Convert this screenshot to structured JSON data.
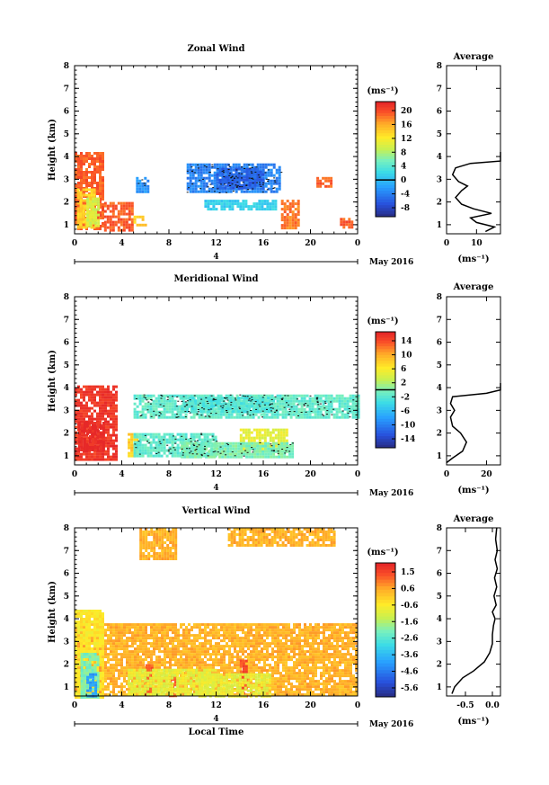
{
  "chart_data": [
    {
      "type": "heatmap",
      "title": "Zonal Wind",
      "xlabel": "",
      "ylabel": "Height (km)",
      "x_ticks": [
        "0",
        "4",
        "8",
        "12",
        "16",
        "20",
        "0"
      ],
      "y_ticks": [
        "1",
        "2",
        "3",
        "4",
        "5",
        "6",
        "7",
        "8"
      ],
      "xlim": [
        0,
        24
      ],
      "ylim": [
        0.6,
        8
      ],
      "date_label": "4",
      "month_label": "May 2016",
      "colorbar": {
        "unit": "(ms⁻¹)",
        "ticks": [
          "20",
          "16",
          "12",
          "8",
          "4",
          "0",
          "-4",
          "-8"
        ],
        "range": [
          -10,
          22
        ]
      },
      "regions": [
        {
          "x": [
            0,
            2.5
          ],
          "y": [
            0.8,
            4.2
          ],
          "value": 19
        },
        {
          "x": [
            0.2,
            1.6
          ],
          "y": [
            0.9,
            2.6
          ],
          "value": 14
        },
        {
          "x": [
            1.0,
            2.0
          ],
          "y": [
            1.0,
            2.2
          ],
          "value": 10
        },
        {
          "x": [
            2.5,
            5.0
          ],
          "y": [
            0.8,
            2.0
          ],
          "value": 19
        },
        {
          "x": [
            5.0,
            6.0
          ],
          "y": [
            1.0,
            1.4
          ],
          "value": 14
        },
        {
          "x": [
            5.2,
            6.3
          ],
          "y": [
            2.5,
            3.1
          ],
          "value": -2
        },
        {
          "x": [
            9.5,
            17.5
          ],
          "y": [
            2.4,
            3.7
          ],
          "value": -3
        },
        {
          "x": [
            12.0,
            16.0
          ],
          "y": [
            2.6,
            3.5
          ],
          "value": -5
        },
        {
          "x": [
            17.5,
            19.0
          ],
          "y": [
            0.9,
            2.1
          ],
          "value": 18
        },
        {
          "x": [
            20.5,
            21.8
          ],
          "y": [
            2.7,
            3.1
          ],
          "value": 19
        },
        {
          "x": [
            22.5,
            23.5
          ],
          "y": [
            0.9,
            1.3
          ],
          "value": 19
        },
        {
          "x": [
            11.0,
            17.0
          ],
          "y": [
            1.7,
            2.1
          ],
          "value": 2
        }
      ],
      "zero_contour": true
    },
    {
      "type": "line",
      "title": "Average",
      "xlabel": "(ms⁻¹)",
      "x_ticks": [
        "0",
        "10"
      ],
      "y_ticks": [
        "1",
        "2",
        "3",
        "4",
        "5",
        "6",
        "7",
        "8"
      ],
      "xlim": [
        0,
        18
      ],
      "ylim": [
        0.6,
        8
      ],
      "profile": [
        [
          13,
          0.7
        ],
        [
          16,
          0.9
        ],
        [
          10,
          1.1
        ],
        [
          8,
          1.3
        ],
        [
          15,
          1.5
        ],
        [
          9,
          1.7
        ],
        [
          5,
          1.9
        ],
        [
          3,
          2.2
        ],
        [
          5,
          2.5
        ],
        [
          7,
          2.7
        ],
        [
          4,
          2.9
        ],
        [
          2,
          3.2
        ],
        [
          3,
          3.5
        ],
        [
          8,
          3.7
        ],
        [
          18,
          3.8
        ],
        [
          18,
          4.2
        ]
      ]
    },
    {
      "type": "heatmap",
      "title": "Meridional Wind",
      "xlabel": "",
      "ylabel": "Height (km)",
      "x_ticks": [
        "0",
        "4",
        "8",
        "12",
        "16",
        "20",
        "0"
      ],
      "y_ticks": [
        "1",
        "2",
        "3",
        "4",
        "5",
        "6",
        "7",
        "8"
      ],
      "xlim": [
        0,
        24
      ],
      "ylim": [
        0.6,
        8
      ],
      "date_label": "4",
      "month_label": "May 2016",
      "colorbar": {
        "unit": "(ms⁻¹)",
        "ticks": [
          "14",
          "10",
          "6",
          "2",
          "-2",
          "-6",
          "-10",
          "-14"
        ],
        "range": [
          -16,
          16
        ]
      },
      "regions": [
        {
          "x": [
            0,
            3.5
          ],
          "y": [
            0.8,
            4.1
          ],
          "value": 15
        },
        {
          "x": [
            0.3,
            2.5
          ],
          "y": [
            1.2,
            2.5
          ],
          "value": 16
        },
        {
          "x": [
            4.5,
            5.2
          ],
          "y": [
            1.0,
            2.0
          ],
          "value": 8
        },
        {
          "x": [
            5.0,
            12.0
          ],
          "y": [
            1.0,
            2.0
          ],
          "value": -1
        },
        {
          "x": [
            5.0,
            24.0
          ],
          "y": [
            2.7,
            3.7
          ],
          "value": -1
        },
        {
          "x": [
            9.0,
            17.0
          ],
          "y": [
            2.9,
            3.6
          ],
          "value": -2
        },
        {
          "x": [
            14.0,
            18.0
          ],
          "y": [
            1.2,
            2.2
          ],
          "value": 5
        },
        {
          "x": [
            9.0,
            18.5
          ],
          "y": [
            1.0,
            1.6
          ],
          "value": 0
        }
      ],
      "zero_contour": true
    },
    {
      "type": "line",
      "title": "Average",
      "xlabel": "(ms⁻¹)",
      "x_ticks": [
        "0",
        "20"
      ],
      "y_ticks": [
        "1",
        "2",
        "3",
        "4",
        "5",
        "6",
        "7",
        "8"
      ],
      "xlim": [
        0,
        27
      ],
      "ylim": [
        0.6,
        8
      ],
      "profile": [
        [
          0,
          0.7
        ],
        [
          3,
          0.9
        ],
        [
          8,
          1.2
        ],
        [
          10,
          1.6
        ],
        [
          7,
          2.0
        ],
        [
          3,
          2.3
        ],
        [
          2,
          2.7
        ],
        [
          4,
          3.0
        ],
        [
          2,
          3.3
        ],
        [
          3,
          3.6
        ],
        [
          20,
          3.75
        ],
        [
          27,
          3.9
        ],
        [
          27,
          4.2
        ]
      ]
    },
    {
      "type": "heatmap",
      "title": "Vertical Wind",
      "xlabel": "Local Time",
      "ylabel": "Height (km)",
      "x_ticks": [
        "0",
        "4",
        "8",
        "12",
        "16",
        "20",
        "0"
      ],
      "y_ticks": [
        "1",
        "2",
        "3",
        "4",
        "5",
        "6",
        "7",
        "8"
      ],
      "xlim": [
        0,
        24
      ],
      "ylim": [
        0.6,
        8
      ],
      "date_label": "4",
      "month_label": "May 2016",
      "colorbar": {
        "unit": "(ms⁻¹)",
        "ticks": [
          "1.5",
          "0.6",
          "-0.6",
          "-1.6",
          "-2.6",
          "-3.6",
          "-4.6",
          "-5.6"
        ],
        "range": [
          -6.1,
          2.0
        ]
      },
      "regions": [
        {
          "x": [
            0.0,
            24.0
          ],
          "y": [
            0.6,
            3.8
          ],
          "value": 0.4
        },
        {
          "x": [
            0.0,
            2.5
          ],
          "y": [
            0.6,
            4.4
          ],
          "value": -0.4
        },
        {
          "x": [
            0.5,
            2.0
          ],
          "y": [
            0.6,
            2.5
          ],
          "value": -2.0
        },
        {
          "x": [
            1.0,
            1.7
          ],
          "y": [
            0.6,
            1.6
          ],
          "value": -4.0
        },
        {
          "x": [
            6.0,
            6.6
          ],
          "y": [
            0.6,
            2.0
          ],
          "value": 1.3
        },
        {
          "x": [
            8.0,
            8.5
          ],
          "y": [
            0.6,
            1.5
          ],
          "value": 1.3
        },
        {
          "x": [
            14.0,
            14.5
          ],
          "y": [
            0.6,
            2.2
          ],
          "value": 1.4
        },
        {
          "x": [
            4.5,
            12.0
          ],
          "y": [
            0.7,
            1.8
          ],
          "value": -0.8
        },
        {
          "x": [
            10.5,
            16.5
          ],
          "y": [
            0.6,
            1.6
          ],
          "value": -0.8
        },
        {
          "x": [
            5.5,
            8.5
          ],
          "y": [
            6.6,
            8.0
          ],
          "value": 0.4
        },
        {
          "x": [
            13.0,
            22.0
          ],
          "y": [
            7.2,
            8.0
          ],
          "value": 0.4
        }
      ],
      "zero_contour": false
    },
    {
      "type": "line",
      "title": "Average",
      "xlabel": "(ms⁻¹)",
      "x_ticks": [
        "-0.5",
        "0.0"
      ],
      "y_ticks": [
        "1",
        "2",
        "3",
        "4",
        "5",
        "6",
        "7",
        "8"
      ],
      "xlim": [
        -0.85,
        0.15
      ],
      "ylim": [
        0.6,
        8
      ],
      "profile": [
        [
          -0.75,
          0.7
        ],
        [
          -0.7,
          1.0
        ],
        [
          -0.55,
          1.4
        ],
        [
          -0.35,
          1.7
        ],
        [
          -0.15,
          2.1
        ],
        [
          -0.05,
          2.5
        ],
        [
          0.0,
          2.9
        ],
        [
          0.0,
          3.3
        ],
        [
          0.02,
          3.7
        ],
        [
          0.05,
          4.0
        ],
        [
          0.0,
          4.3
        ],
        [
          0.07,
          4.6
        ],
        [
          0.03,
          5.0
        ],
        [
          0.08,
          5.4
        ],
        [
          0.04,
          5.8
        ],
        [
          0.09,
          6.2
        ],
        [
          0.05,
          6.6
        ],
        [
          0.09,
          7.0
        ],
        [
          0.06,
          7.5
        ],
        [
          0.08,
          8.0
        ]
      ]
    }
  ]
}
